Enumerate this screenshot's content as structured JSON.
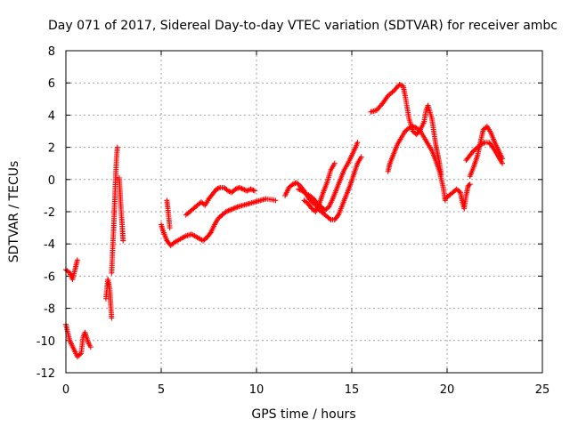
{
  "chart_data": {
    "type": "scatter",
    "title": "Day 071 of 2017, Sidereal Day-to-day VTEC variation (SDTVAR) for receiver ambc",
    "xlabel": "GPS time / hours",
    "ylabel": "SDTVAR / TECUs",
    "xlim": [
      0,
      25
    ],
    "ylim": [
      -12,
      8
    ],
    "xticks": [
      "0",
      "5",
      "10",
      "15",
      "20",
      "25"
    ],
    "yticks": [
      "-12",
      "-10",
      "-8",
      "-6",
      "-4",
      "-2",
      "0",
      "2",
      "4",
      "6",
      "8"
    ],
    "grid": true,
    "marker": "+",
    "color": "#ff0000",
    "series": [
      {
        "name": "SDTVAR",
        "segments": [
          [
            [
              0.0,
              -5.6
            ],
            [
              0.2,
              -5.8
            ],
            [
              0.35,
              -6.2
            ],
            [
              0.5,
              -5.5
            ],
            [
              0.6,
              -5.0
            ]
          ],
          [
            [
              0.0,
              -9.0
            ],
            [
              0.2,
              -10.0
            ],
            [
              0.4,
              -10.5
            ],
            [
              0.6,
              -11.0
            ],
            [
              0.8,
              -10.8
            ],
            [
              0.9,
              -9.8
            ],
            [
              1.0,
              -9.5
            ],
            [
              1.2,
              -10.2
            ],
            [
              1.3,
              -10.4
            ]
          ],
          [
            [
              2.1,
              -7.4
            ],
            [
              2.2,
              -6.2
            ],
            [
              2.3,
              -6.8
            ],
            [
              2.35,
              -7.8
            ],
            [
              2.4,
              -8.6
            ]
          ],
          [
            [
              2.4,
              -5.8
            ],
            [
              2.45,
              -4.4
            ],
            [
              2.5,
              -3.2
            ],
            [
              2.55,
              -1.6
            ],
            [
              2.6,
              -0.2
            ],
            [
              2.65,
              1.2
            ],
            [
              2.7,
              2.0
            ]
          ],
          [
            [
              2.8,
              0.1
            ],
            [
              2.85,
              -1.0
            ],
            [
              2.9,
              -2.0
            ],
            [
              2.95,
              -2.8
            ],
            [
              3.0,
              -3.8
            ]
          ],
          [
            [
              5.0,
              -2.8
            ],
            [
              5.1,
              -3.2
            ],
            [
              5.3,
              -3.8
            ],
            [
              5.5,
              -4.1
            ],
            [
              5.7,
              -3.9
            ],
            [
              6.0,
              -3.7
            ],
            [
              6.3,
              -3.5
            ],
            [
              6.6,
              -3.4
            ],
            [
              6.9,
              -3.6
            ],
            [
              7.2,
              -3.8
            ],
            [
              7.4,
              -3.6
            ],
            [
              7.6,
              -3.3
            ],
            [
              7.8,
              -2.8
            ],
            [
              8.0,
              -2.4
            ],
            [
              8.2,
              -2.2
            ],
            [
              8.4,
              -2.0
            ],
            [
              8.6,
              -1.9
            ],
            [
              8.8,
              -1.8
            ],
            [
              9.0,
              -1.7
            ],
            [
              9.3,
              -1.6
            ],
            [
              9.6,
              -1.5
            ],
            [
              9.9,
              -1.4
            ],
            [
              10.2,
              -1.3
            ],
            [
              10.5,
              -1.2
            ],
            [
              10.8,
              -1.25
            ],
            [
              11.0,
              -1.3
            ]
          ],
          [
            [
              5.3,
              -1.3
            ],
            [
              5.35,
              -1.8
            ],
            [
              5.4,
              -2.4
            ],
            [
              5.45,
              -3.0
            ]
          ],
          [
            [
              6.3,
              -2.2
            ],
            [
              6.5,
              -2.0
            ],
            [
              6.7,
              -1.8
            ],
            [
              6.9,
              -1.6
            ],
            [
              7.1,
              -1.4
            ],
            [
              7.3,
              -1.6
            ],
            [
              7.5,
              -1.2
            ],
            [
              7.7,
              -0.9
            ],
            [
              7.9,
              -0.6
            ],
            [
              8.1,
              -0.5
            ],
            [
              8.3,
              -0.5
            ],
            [
              8.5,
              -0.7
            ],
            [
              8.7,
              -0.8
            ],
            [
              8.9,
              -0.6
            ],
            [
              9.1,
              -0.5
            ],
            [
              9.3,
              -0.6
            ],
            [
              9.5,
              -0.7
            ],
            [
              9.7,
              -0.6
            ],
            [
              9.9,
              -0.7
            ]
          ],
          [
            [
              11.5,
              -1.0
            ],
            [
              11.7,
              -0.5
            ],
            [
              11.9,
              -0.3
            ],
            [
              12.1,
              -0.2
            ],
            [
              12.3,
              -0.4
            ],
            [
              12.5,
              -0.7
            ],
            [
              12.7,
              -1.1
            ],
            [
              12.9,
              -1.4
            ],
            [
              13.1,
              -1.6
            ],
            [
              13.3,
              -1.9
            ],
            [
              13.5,
              -2.1
            ],
            [
              13.7,
              -2.3
            ],
            [
              13.9,
              -2.5
            ],
            [
              14.1,
              -2.5
            ],
            [
              14.3,
              -2.2
            ],
            [
              14.5,
              -1.6
            ],
            [
              14.7,
              -1.0
            ],
            [
              14.9,
              -0.4
            ],
            [
              15.1,
              0.3
            ],
            [
              15.3,
              1.0
            ],
            [
              15.5,
              1.4
            ]
          ],
          [
            [
              12.2,
              -0.6
            ],
            [
              12.4,
              -0.7
            ],
            [
              12.6,
              -0.9
            ],
            [
              12.8,
              -1.0
            ],
            [
              13.0,
              -1.2
            ],
            [
              13.2,
              -1.5
            ],
            [
              13.4,
              -1.7
            ],
            [
              13.6,
              -1.9
            ],
            [
              13.8,
              -1.7
            ],
            [
              14.0,
              -1.2
            ],
            [
              14.2,
              -0.6
            ],
            [
              14.4,
              0.0
            ],
            [
              14.6,
              0.6
            ],
            [
              14.8,
              1.0
            ],
            [
              15.0,
              1.5
            ],
            [
              15.2,
              2.0
            ],
            [
              15.3,
              2.3
            ]
          ],
          [
            [
              12.5,
              -1.3
            ],
            [
              12.7,
              -1.5
            ],
            [
              12.9,
              -1.8
            ],
            [
              13.1,
              -2.0
            ],
            [
              13.3,
              -1.5
            ],
            [
              13.5,
              -0.8
            ],
            [
              13.7,
              -0.2
            ],
            [
              13.9,
              0.6
            ],
            [
              14.1,
              1.0
            ]
          ],
          [
            [
              16.0,
              4.2
            ],
            [
              16.3,
              4.3
            ],
            [
              16.6,
              4.7
            ],
            [
              16.9,
              5.2
            ],
            [
              17.2,
              5.5
            ],
            [
              17.5,
              5.9
            ],
            [
              17.7,
              5.8
            ],
            [
              17.8,
              5.2
            ],
            [
              17.9,
              4.5
            ],
            [
              18.0,
              3.8
            ],
            [
              18.2,
              3.0
            ],
            [
              18.4,
              2.8
            ],
            [
              18.6,
              3.1
            ],
            [
              18.8,
              3.6
            ],
            [
              18.9,
              4.3
            ],
            [
              19.0,
              4.6
            ],
            [
              19.2,
              3.8
            ],
            [
              19.3,
              3.0
            ],
            [
              19.4,
              2.2
            ],
            [
              19.5,
              1.6
            ],
            [
              19.6,
              1.0
            ],
            [
              19.7,
              0.3
            ]
          ],
          [
            [
              16.9,
              0.5
            ],
            [
              17.0,
              1.0
            ],
            [
              17.2,
              1.6
            ],
            [
              17.4,
              2.2
            ],
            [
              17.6,
              2.6
            ],
            [
              17.8,
              3.0
            ],
            [
              18.0,
              3.2
            ],
            [
              18.2,
              3.3
            ],
            [
              18.4,
              3.2
            ],
            [
              18.6,
              3.0
            ],
            [
              18.8,
              2.6
            ],
            [
              19.0,
              2.2
            ],
            [
              19.2,
              1.8
            ],
            [
              19.4,
              1.2
            ],
            [
              19.6,
              0.5
            ],
            [
              19.8,
              -0.5
            ],
            [
              19.9,
              -1.3
            ]
          ],
          [
            [
              19.9,
              -1.2
            ],
            [
              20.1,
              -1.0
            ],
            [
              20.3,
              -0.8
            ],
            [
              20.5,
              -0.6
            ],
            [
              20.7,
              -0.8
            ],
            [
              20.8,
              -1.4
            ],
            [
              20.9,
              -1.8
            ],
            [
              21.0,
              -1.0
            ],
            [
              21.1,
              -0.4
            ],
            [
              21.2,
              -0.3
            ]
          ],
          [
            [
              21.0,
              1.2
            ],
            [
              21.2,
              1.5
            ],
            [
              21.4,
              1.8
            ],
            [
              21.6,
              2.0
            ],
            [
              21.8,
              2.2
            ],
            [
              22.0,
              2.3
            ],
            [
              22.2,
              2.3
            ],
            [
              22.4,
              2.0
            ],
            [
              22.6,
              1.6
            ],
            [
              22.8,
              1.2
            ],
            [
              22.9,
              1.0
            ]
          ],
          [
            [
              21.2,
              0.2
            ],
            [
              21.4,
              0.8
            ],
            [
              21.6,
              1.5
            ],
            [
              21.8,
              2.6
            ],
            [
              21.9,
              3.1
            ],
            [
              22.1,
              3.3
            ],
            [
              22.3,
              2.9
            ],
            [
              22.5,
              2.3
            ],
            [
              22.7,
              1.8
            ],
            [
              22.9,
              1.3
            ]
          ]
        ]
      }
    ]
  }
}
